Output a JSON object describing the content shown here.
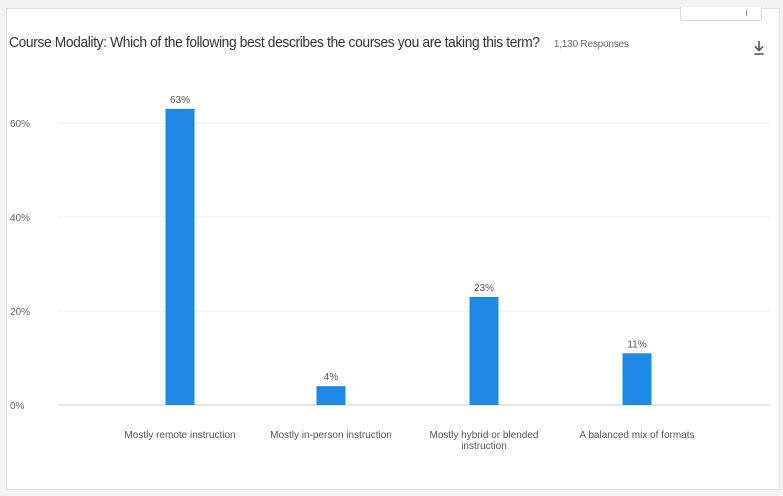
{
  "header": {
    "title": "Course Modality: Which of the following best describes the courses you are taking this term?",
    "responses": "1,130 Responses"
  },
  "icons": {
    "download": "download-icon"
  },
  "colors": {
    "bar": "#1e88e5",
    "grid": "#ececec",
    "axis": "#cfcfcf"
  },
  "chart_data": {
    "type": "bar",
    "title": "Course Modality: Which of the following best describes the courses you are taking this term?",
    "categories": [
      [
        "Mostly remote instruction"
      ],
      [
        "Mostly in-person instruction"
      ],
      [
        "Mostly hybrid or blended",
        "instruction"
      ],
      [
        "A balanced mix of formats"
      ]
    ],
    "values": [
      63,
      4,
      23,
      11
    ],
    "data_labels": [
      "63%",
      "4%",
      "23%",
      "11%"
    ],
    "yticks": [
      0,
      20,
      40,
      60
    ],
    "ytick_labels": [
      "0%",
      "20%",
      "40%",
      "60%"
    ],
    "ylim": [
      0,
      70
    ],
    "grid": true,
    "legend": "none"
  }
}
